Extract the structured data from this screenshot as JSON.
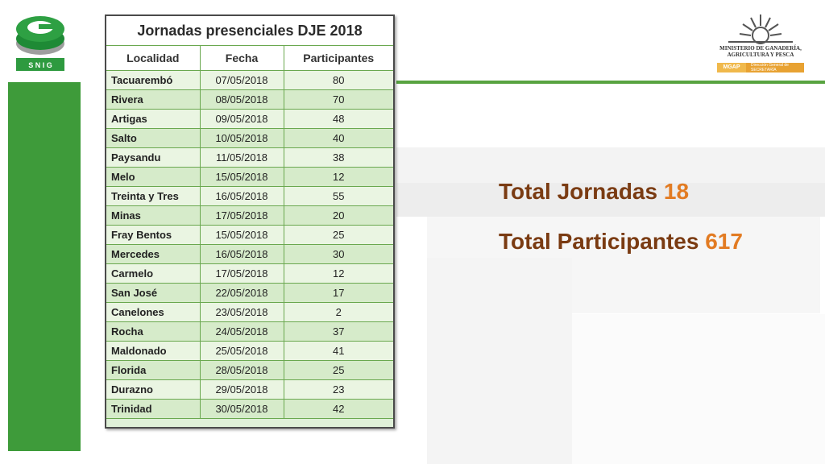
{
  "table": {
    "caption": "Jornadas presenciales DJE 2018",
    "headers": [
      "Localidad",
      "Fecha",
      "Participantes"
    ],
    "rows": [
      [
        "Tacuarembó",
        "07/05/2018",
        "80"
      ],
      [
        "Rivera",
        "08/05/2018",
        "70"
      ],
      [
        "Artigas",
        "09/05/2018",
        "48"
      ],
      [
        "Salto",
        "10/05/2018",
        "40"
      ],
      [
        "Paysandu",
        "11/05/2018",
        "38"
      ],
      [
        "Melo",
        "15/05/2018",
        "12"
      ],
      [
        "Treinta y Tres",
        "16/05/2018",
        "55"
      ],
      [
        "Minas",
        "17/05/2018",
        "20"
      ],
      [
        "Fray Bentos",
        "15/05/2018",
        "25"
      ],
      [
        "Mercedes",
        "16/05/2018",
        "30"
      ],
      [
        "Carmelo",
        "17/05/2018",
        "12"
      ],
      [
        "San José",
        "22/05/2018",
        "17"
      ],
      [
        "Canelones",
        "23/05/2018",
        "2"
      ],
      [
        "Rocha",
        "24/05/2018",
        "37"
      ],
      [
        "Maldonado",
        "25/05/2018",
        "41"
      ],
      [
        "Florida",
        "28/05/2018",
        "25"
      ],
      [
        "Durazno",
        "29/05/2018",
        "23"
      ],
      [
        "Trinidad",
        "30/05/2018",
        "42"
      ]
    ]
  },
  "totals": {
    "jornadas_label": "Total Jornadas",
    "jornadas_value": "18",
    "participantes_label": "Total Participantes",
    "participantes_value": "617"
  },
  "logos": {
    "snig_text": "S N I G",
    "mgap_title": "MINISTERIO DE GANADERÍA, AGRICULTURA Y PESCA",
    "mgap_short": "MGAP",
    "mgap_sub": "Dirección General de SECRETARÍA"
  },
  "colors": {
    "accent_green": "#3e9b3a",
    "total_label": "#7a3b12",
    "total_value": "#e27b22"
  }
}
